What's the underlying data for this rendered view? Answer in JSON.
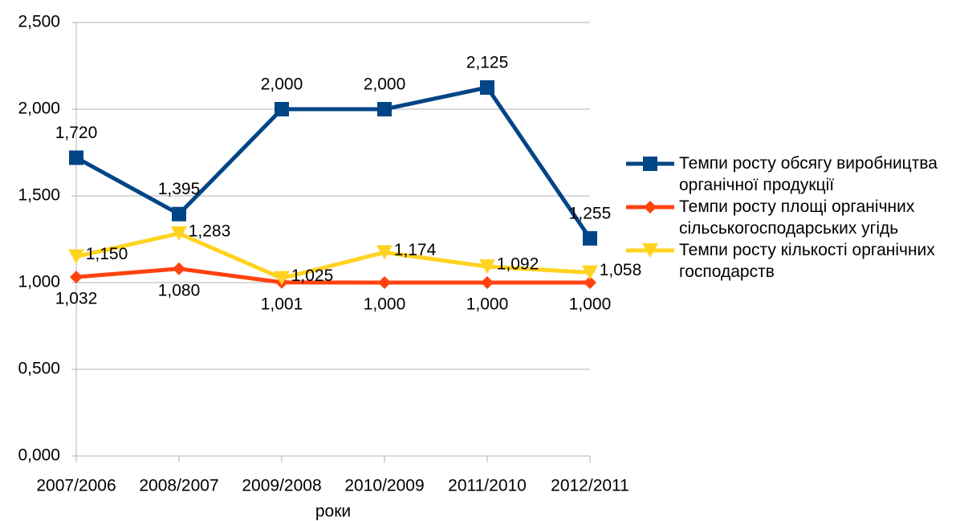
{
  "chart_data": {
    "type": "line",
    "x_label": "роки",
    "categories": [
      "2007/2006",
      "2008/2007",
      "2009/2008",
      "2010/2009",
      "2011/2010",
      "2012/2011"
    ],
    "series": [
      {
        "name": "Темпи росту обсягу виробництва органічної продукції",
        "color": "#004586",
        "marker": "square",
        "values": [
          1.72,
          1.395,
          2.0,
          2.0,
          2.125,
          1.255
        ],
        "value_labels": [
          "1,720",
          "1,395",
          "2,000",
          "2,000",
          "2,125",
          "1,255"
        ]
      },
      {
        "name": "Темпи росту площі органічних сільськогосподарських угідь",
        "color": "#ff420e",
        "marker": "diamond",
        "values": [
          1.032,
          1.08,
          1.001,
          1.0,
          1.0,
          1.0
        ],
        "value_labels": [
          "1,032",
          "1,080",
          "1,001",
          "1,000",
          "1,000",
          "1,000"
        ]
      },
      {
        "name": "Темпи росту кількості органічних господарств",
        "color": "#ffd320",
        "marker": "triangle",
        "values": [
          1.15,
          1.283,
          1.025,
          1.174,
          1.092,
          1.058
        ],
        "value_labels": [
          "1,150",
          "1,283",
          "1,025",
          "1,174",
          "1,092",
          "1,058"
        ]
      }
    ],
    "ylim": [
      0,
      2.5
    ],
    "yticks": [
      {
        "value": 0,
        "label": "0,000"
      },
      {
        "value": 0.5,
        "label": "0,500"
      },
      {
        "value": 1,
        "label": "1,000"
      },
      {
        "value": 1.5,
        "label": "1,500"
      },
      {
        "value": 2,
        "label": "2,000"
      },
      {
        "value": 2.5,
        "label": "2,500"
      }
    ],
    "grid": true,
    "legend": "right"
  }
}
